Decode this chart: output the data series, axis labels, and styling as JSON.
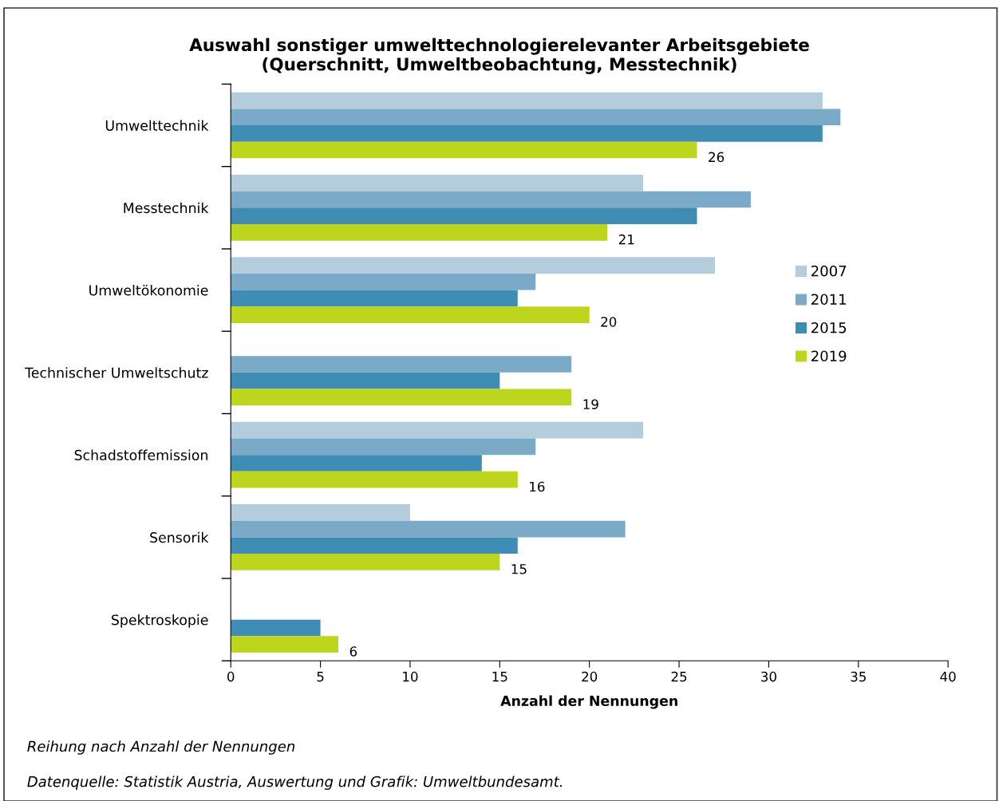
{
  "chart_data": {
    "type": "bar",
    "orientation": "horizontal",
    "title": "Auswahl sonstiger umwelttechnologierelevanter Arbeitsgebiete\n(Querschnitt, Umweltbeobachtung, Messtechnik)",
    "xlabel": "Anzahl der Nennungen",
    "categories": [
      "Umwelttechnik",
      "Messtechnik",
      "Umweltökonomie",
      "Technischer Umweltschutz",
      "Schadstoffemission",
      "Sensorik",
      "Spektroskopie"
    ],
    "series": [
      {
        "name": "2007",
        "color": "#b4cddd",
        "values": [
          33,
          23,
          27,
          null,
          23,
          10,
          null
        ]
      },
      {
        "name": "2011",
        "color": "#7aaac8",
        "values": [
          34,
          29,
          17,
          19,
          17,
          22,
          null
        ]
      },
      {
        "name": "2015",
        "color": "#3f8db5",
        "values": [
          33,
          26,
          16,
          15,
          14,
          16,
          5
        ]
      },
      {
        "name": "2019",
        "color": "#bed51e",
        "values": [
          26,
          21,
          20,
          19,
          16,
          15,
          6
        ],
        "value_labels": [
          "26",
          "21",
          "20",
          "19",
          "16",
          "15",
          "6"
        ]
      }
    ],
    "xlim": [
      0,
      40
    ],
    "xticks": [
      0,
      5,
      10,
      15,
      20,
      25,
      30,
      35,
      40
    ],
    "grid": false,
    "legend": "right",
    "annotations": [
      "Reihung nach Anzahl der Nennungen",
      "Datenquelle: Statistik Austria, Auswertung und Grafik: Umweltbundesamt."
    ]
  }
}
